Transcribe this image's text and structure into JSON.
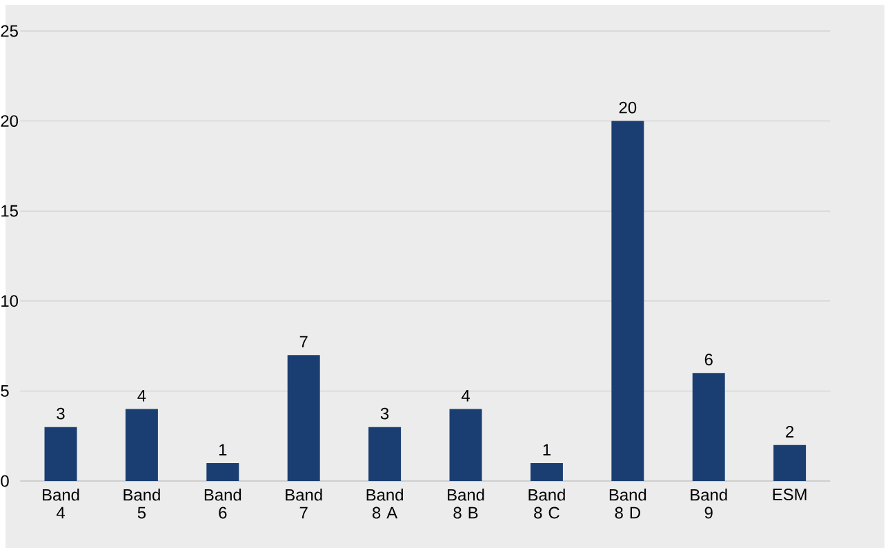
{
  "chart_data": {
    "type": "bar",
    "categories": [
      "Band 4",
      "Band 5",
      "Band 6",
      "Band 7",
      "Band 8 A",
      "Band 8 B",
      "Band 8 C",
      "Band 8 D",
      "Band 9",
      "ESM"
    ],
    "values": [
      3,
      4,
      1,
      7,
      3,
      4,
      1,
      20,
      6,
      2
    ],
    "color": "#1a3e72",
    "ylim": [
      0,
      25
    ],
    "yticks": [
      0,
      5,
      10,
      15,
      20,
      25
    ],
    "grid": "y",
    "data_labels": true
  }
}
